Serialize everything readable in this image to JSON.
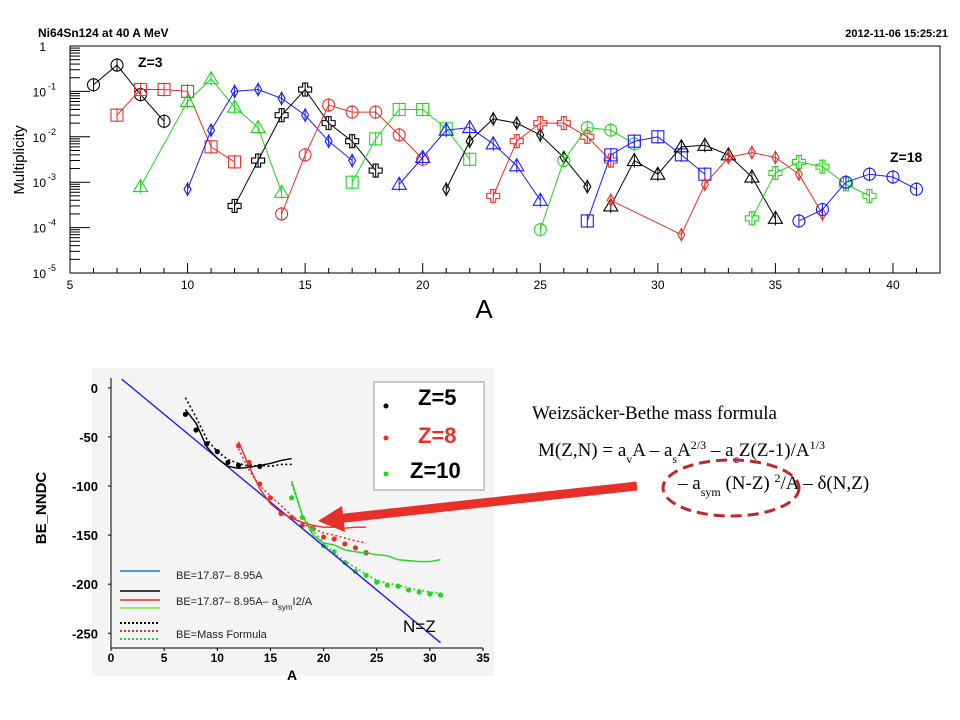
{
  "top_chart": {
    "title": "Ni64Sn124 at 40 A MeV",
    "timestamp": "2012-11-06 15:25:21",
    "ylabel": "Multiplicity",
    "xlabel": "A",
    "label_first": "Z=3",
    "label_last": "Z=18",
    "xlim": [
      5,
      42
    ],
    "xticks": [
      "5",
      "10",
      "15",
      "20",
      "25",
      "30",
      "35",
      "40"
    ],
    "ylim_log10": [
      -5,
      0
    ],
    "yticks": [
      {
        "exp": 0,
        "base": "1",
        "sup": ""
      },
      {
        "exp": -1,
        "base": "10",
        "sup": "-1"
      },
      {
        "exp": -2,
        "base": "10",
        "sup": "-2"
      },
      {
        "exp": -3,
        "base": "10",
        "sup": "-3"
      },
      {
        "exp": -4,
        "base": "10",
        "sup": "-4"
      },
      {
        "exp": -5,
        "base": "10",
        "sup": "-5"
      }
    ]
  },
  "bottom_chart": {
    "ylabel": "BE_NNDC",
    "xlabel": "A",
    "xlim": [
      0,
      35
    ],
    "ylim": [
      -265,
      10
    ],
    "xticks": [
      "0",
      "5",
      "10",
      "15",
      "20",
      "25",
      "30",
      "35"
    ],
    "yticks": [
      "0",
      "-50",
      "-100",
      "-150",
      "-200",
      "-250"
    ],
    "legend_top": [
      "Z=5",
      "Z=8",
      "Z=10"
    ],
    "legend_bottom": {
      "formula1": "BE=17.87– 8.95A",
      "formula2_pre": "BE=17.87– 8.95A– a",
      "formula2_sub": "sym",
      "formula2_post": "I2/A",
      "formula3": "BE=Mass Formula"
    },
    "annotation": "N=Z"
  },
  "formula_box": {
    "title": "Weizsäcker-Bethe mass formula",
    "line1_html": "M(Z,N) = a<tspan baseline-shift='sub' font-size='12'>v</tspan>A – a<tspan baseline-shift='sub' font-size='12'>s</tspan>A<tspan baseline-shift='super' font-size='12'>2/3</tspan> – a<tspan baseline-shift='sub' font-size='12'>c</tspan>Z(Z-1)/A<tspan baseline-shift='super' font-size='12'>1/3</tspan>",
    "line2_html": "– a<tspan baseline-shift='sub' font-size='12'>sym</tspan> (N-Z) <tspan baseline-shift='super' font-size='12'>2</tspan>/A – δ(N,Z)"
  },
  "colors": {
    "Z3": "#000000",
    "Z4": "#e8302a",
    "Z5": "#1a1aff",
    "Z6": "#22d622",
    "Z7": "#000000"
  },
  "chart_data": [
    {
      "type": "line",
      "title": "Ni64Sn124 at 40 A MeV",
      "xlabel": "A",
      "ylabel": "Multiplicity",
      "yscale": "log",
      "series": [
        {
          "name": "Z=3",
          "color": "#000000",
          "marker": "circle",
          "x": [
            6,
            7,
            8,
            9
          ],
          "y": [
            0.14,
            0.38,
            0.085,
            0.022
          ]
        },
        {
          "name": "",
          "color": "#e8302a",
          "marker": "square",
          "x": [
            7,
            8,
            9,
            10,
            11,
            12
          ],
          "y": [
            0.03,
            0.11,
            0.11,
            0.1,
            0.006,
            0.0028
          ]
        },
        {
          "name": "",
          "color": "#22d622",
          "marker": "triangle",
          "x": [
            8,
            10,
            11,
            12,
            13,
            14
          ],
          "y": [
            0.0008,
            0.06,
            0.19,
            0.045,
            0.016,
            0.0006
          ]
        },
        {
          "name": "",
          "color": "#1a1aff",
          "marker": "diamond",
          "x": [
            10,
            11,
            12,
            13,
            14,
            15,
            16,
            17
          ],
          "y": [
            0.0007,
            0.014,
            0.1,
            0.11,
            0.07,
            0.03,
            0.008,
            0.003
          ]
        },
        {
          "name": "",
          "color": "#000000",
          "marker": "cross",
          "x": [
            12,
            13,
            14,
            15,
            16,
            17,
            18
          ],
          "y": [
            0.0003,
            0.003,
            0.03,
            0.11,
            0.02,
            0.008,
            0.0018
          ]
        },
        {
          "name": "",
          "color": "#e8302a",
          "marker": "circle",
          "x": [
            14,
            15,
            16,
            17,
            18,
            19,
            20
          ],
          "y": [
            0.0002,
            0.004,
            0.05,
            0.035,
            0.035,
            0.011,
            0.0032
          ]
        },
        {
          "name": "",
          "color": "#22d622",
          "marker": "square",
          "x": [
            17,
            18,
            19,
            20,
            21,
            22
          ],
          "y": [
            0.001,
            0.009,
            0.04,
            0.04,
            0.015,
            0.0032
          ]
        },
        {
          "name": "",
          "color": "#1a1aff",
          "marker": "triangle",
          "x": [
            19,
            20,
            21,
            22,
            23,
            24,
            25
          ],
          "y": [
            0.0009,
            0.0035,
            0.014,
            0.016,
            0.007,
            0.0023,
            0.0004
          ]
        },
        {
          "name": "",
          "color": "#000000",
          "marker": "diamond",
          "x": [
            21,
            22,
            23,
            24,
            25,
            26,
            27
          ],
          "y": [
            0.0007,
            0.008,
            0.025,
            0.02,
            0.011,
            0.0035,
            0.0008
          ]
        },
        {
          "name": "",
          "color": "#e8302a",
          "marker": "cross",
          "x": [
            23,
            24,
            25,
            26,
            27,
            28
          ],
          "y": [
            0.0005,
            0.008,
            0.02,
            0.02,
            0.01,
            0.003
          ]
        },
        {
          "name": "",
          "color": "#22d622",
          "marker": "circle",
          "x": [
            25,
            26,
            27,
            28,
            29
          ],
          "y": [
            9e-05,
            0.003,
            0.016,
            0.014,
            0.007
          ]
        },
        {
          "name": "",
          "color": "#1a1aff",
          "marker": "square",
          "x": [
            27,
            28,
            29,
            30,
            31,
            32
          ],
          "y": [
            0.00014,
            0.004,
            0.008,
            0.01,
            0.004,
            0.0015
          ]
        },
        {
          "name": "",
          "color": "#000000",
          "marker": "triangle",
          "x": [
            28,
            29,
            30,
            31,
            32,
            33,
            34,
            35
          ],
          "y": [
            0.0003,
            0.003,
            0.0015,
            0.006,
            0.0065,
            0.004,
            0.0013,
            0.00016
          ]
        },
        {
          "name": "",
          "color": "#e8302a",
          "marker": "diamond",
          "x": [
            28,
            31,
            32,
            33,
            34,
            35,
            36,
            37
          ],
          "y": [
            0.0004,
            7e-05,
            0.0009,
            0.0035,
            0.0045,
            0.0035,
            0.0015,
            0.0002
          ]
        },
        {
          "name": "",
          "color": "#22d622",
          "marker": "cross",
          "x": [
            34,
            35,
            36,
            37,
            38,
            39
          ],
          "y": [
            0.00016,
            0.0016,
            0.0028,
            0.0022,
            0.0009,
            0.0005
          ]
        },
        {
          "name": "Z=18",
          "color": "#1a1aff",
          "marker": "circle",
          "x": [
            36,
            37,
            38,
            39,
            40,
            41
          ],
          "y": [
            0.00014,
            0.00025,
            0.001,
            0.0015,
            0.0013,
            0.0007
          ]
        }
      ]
    },
    {
      "type": "scatter",
      "xlabel": "A",
      "ylabel": "BE_NNDC",
      "xlim": [
        0,
        35
      ],
      "ylim": [
        -265,
        10
      ],
      "series": [
        {
          "name": "Z=5",
          "color": "#000000",
          "kind": "points",
          "x": [
            7,
            8,
            9,
            10,
            11,
            12,
            13,
            14
          ],
          "y": [
            -27,
            -43,
            -57,
            -65,
            -76,
            -79,
            -79,
            -80
          ]
        },
        {
          "name": "Z=8",
          "color": "#e8302a",
          "kind": "points",
          "x": [
            12,
            13,
            14,
            15,
            16,
            17,
            18,
            19,
            20,
            21,
            22,
            23,
            24
          ],
          "y": [
            -59,
            -76,
            -98,
            -112,
            -128,
            -132,
            -140,
            -143,
            -152,
            -154,
            -159,
            -163,
            -168
          ]
        },
        {
          "name": "Z=10",
          "color": "#22d622",
          "kind": "points",
          "x": [
            17,
            18,
            19,
            20,
            21,
            22,
            23,
            24,
            25,
            26,
            27,
            28,
            29,
            30,
            31
          ],
          "y": [
            -112,
            -132,
            -144,
            -161,
            -167,
            -178,
            -187,
            -191,
            -198,
            -201,
            -202,
            -206,
            -208,
            -210,
            -211
          ]
        },
        {
          "name": "BE=17.87– 8.95A",
          "color": "#1a1aff",
          "kind": "line",
          "x": [
            1,
            31
          ],
          "y": [
            8.9,
            -259.6
          ]
        },
        {
          "name": "",
          "color": "#000000",
          "kind": "line",
          "x": [
            7,
            8,
            9,
            10,
            11,
            12,
            13,
            14,
            15,
            16,
            17
          ],
          "y": [
            -22,
            -36,
            -60,
            -72,
            -80,
            -82,
            -81,
            -79,
            -77,
            -74,
            -72
          ]
        },
        {
          "name": "",
          "color": "#e8302a",
          "kind": "line",
          "x": [
            12,
            13,
            14,
            15,
            16,
            17,
            18,
            19,
            20,
            21,
            22,
            23,
            24
          ],
          "y": [
            -55,
            -80,
            -103,
            -118,
            -127,
            -133,
            -137,
            -140,
            -142,
            -142,
            -143,
            -142,
            -142
          ]
        },
        {
          "name": "",
          "color": "#22d622",
          "kind": "line",
          "x": [
            17,
            18,
            19,
            20,
            21,
            22,
            23,
            24,
            25,
            26,
            27,
            28,
            29,
            30,
            31
          ],
          "y": [
            -95,
            -130,
            -150,
            -158,
            -160,
            -165,
            -167,
            -168,
            -170,
            -171,
            -175,
            -176,
            -177,
            -177,
            -175
          ]
        },
        {
          "name": "BE=Mass Formula",
          "color": "#000000",
          "kind": "dotted",
          "x": [
            7,
            8,
            9,
            10,
            11,
            12,
            13,
            14,
            15,
            16,
            17
          ],
          "y": [
            -10,
            -30,
            -52,
            -65,
            -73,
            -77,
            -80,
            -79,
            -80,
            -78,
            -78
          ]
        },
        {
          "name": "",
          "color": "#e8302a",
          "kind": "dotted",
          "x": [
            12,
            13,
            14,
            15,
            16,
            17,
            18,
            19,
            20,
            21,
            22,
            23,
            24
          ],
          "y": [
            -62,
            -84,
            -100,
            -110,
            -120,
            -130,
            -138,
            -143,
            -148,
            -150,
            -153,
            -156,
            -158
          ]
        },
        {
          "name": "",
          "color": "#22d622",
          "kind": "dotted",
          "x": [
            17,
            18,
            19,
            20,
            21,
            22,
            23,
            24,
            25,
            26,
            27,
            28,
            29,
            30,
            31
          ],
          "y": [
            -98,
            -130,
            -146,
            -158,
            -168,
            -177,
            -183,
            -190,
            -196,
            -199,
            -201,
            -204,
            -206,
            -208,
            -209
          ]
        }
      ]
    }
  ]
}
